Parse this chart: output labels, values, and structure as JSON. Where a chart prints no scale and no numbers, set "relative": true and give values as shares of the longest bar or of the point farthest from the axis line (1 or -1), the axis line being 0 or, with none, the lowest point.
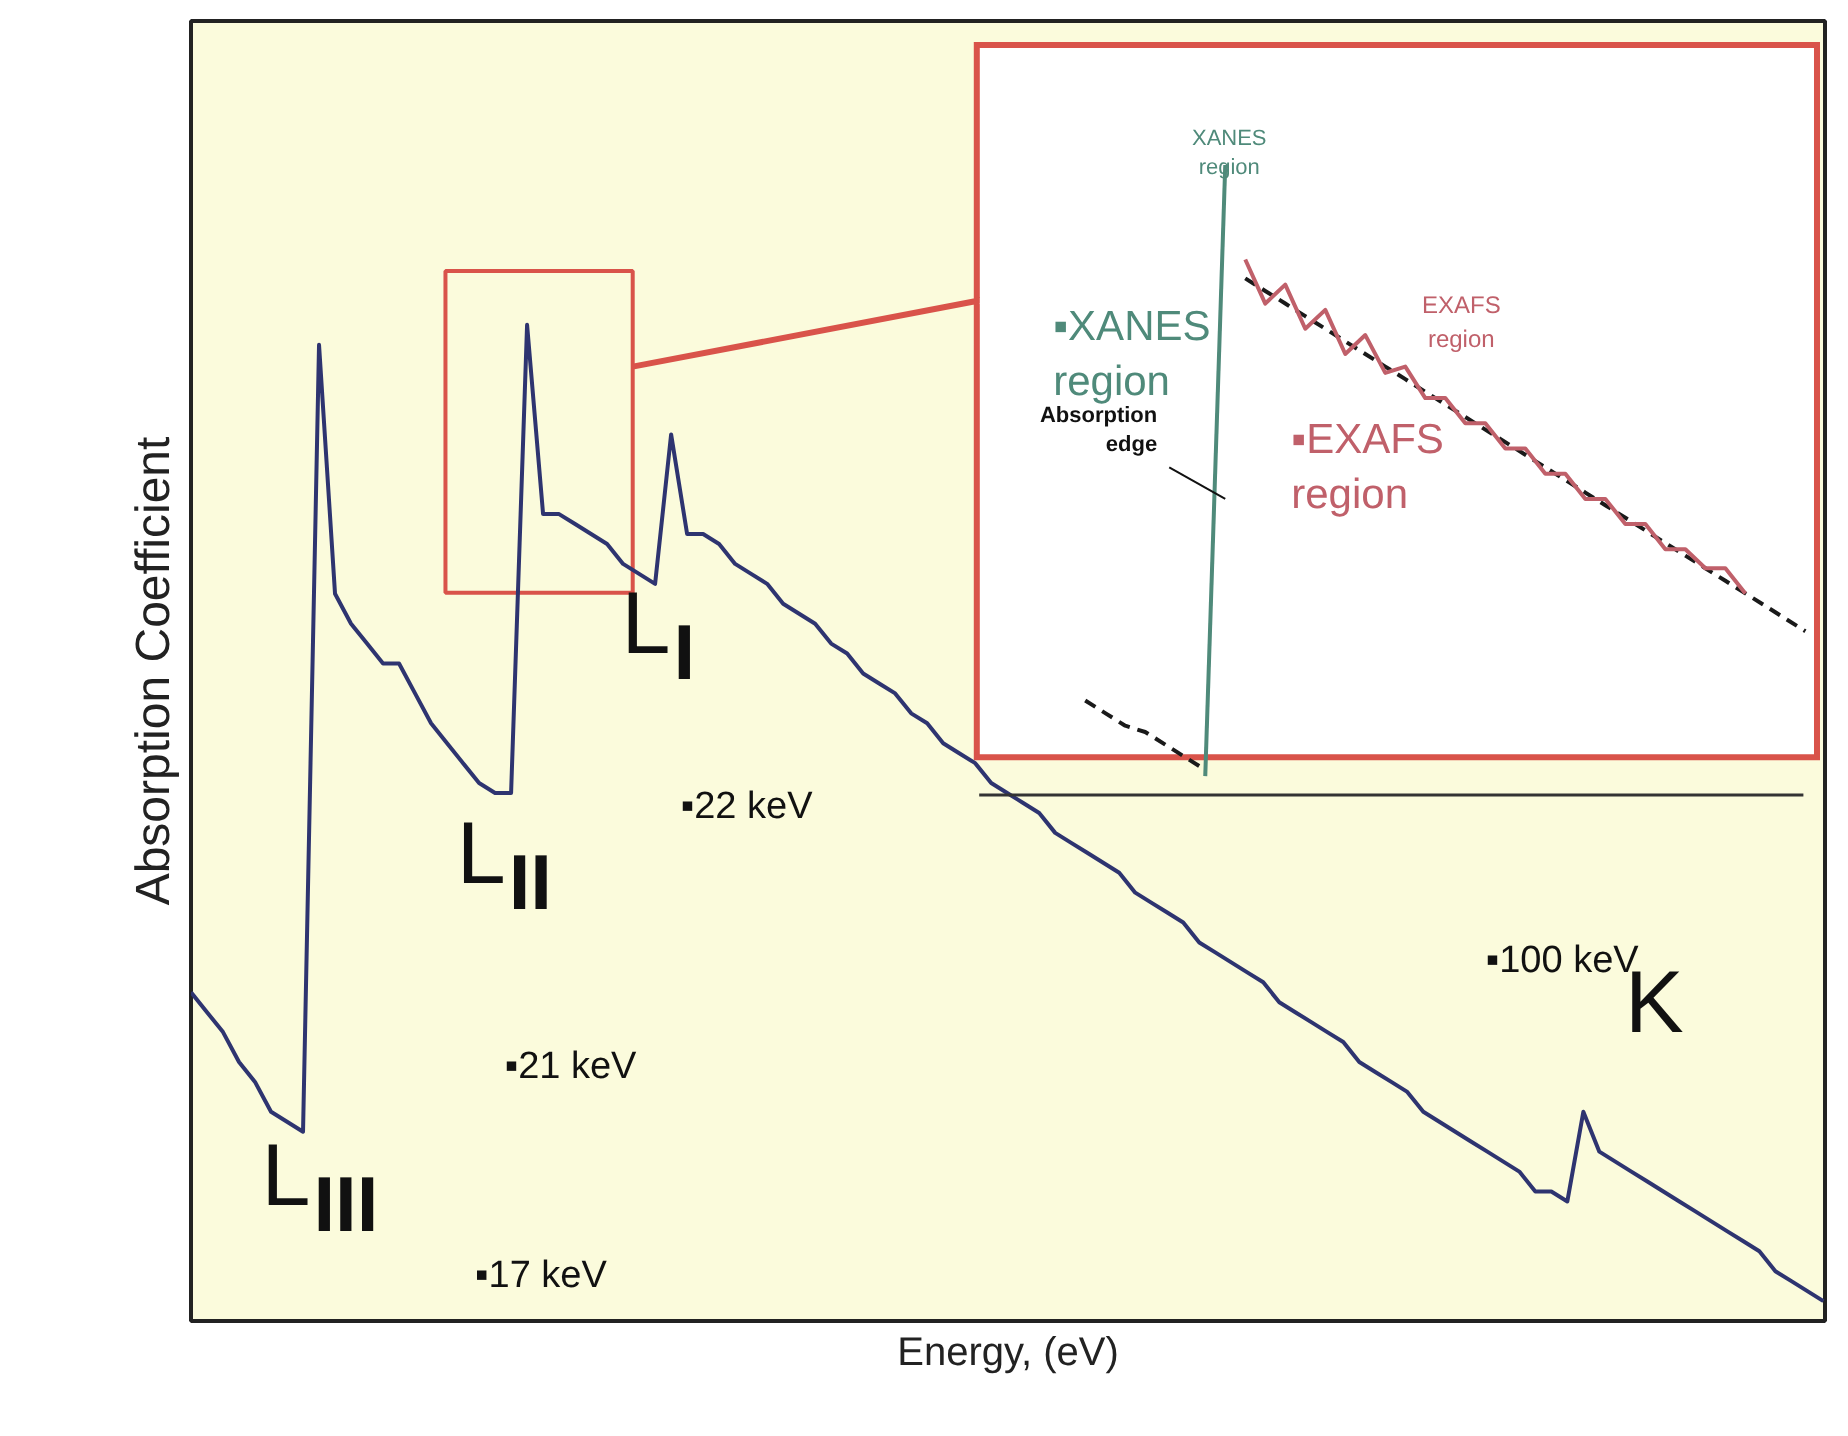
{
  "chart_data": [
    {
      "type": "line",
      "relative": true,
      "xlabel": "Energy, (eV)",
      "ylabel": "Absorption Coefficient",
      "categories": [
        null,
        null,
        null,
        null,
        null,
        null,
        null,
        null,
        null,
        null,
        null,
        null,
        null,
        null,
        null,
        null,
        null,
        null,
        null,
        null,
        null,
        null,
        null,
        null,
        null,
        null,
        null,
        null,
        null,
        null,
        null,
        null,
        null,
        null,
        null,
        null,
        null,
        null,
        null,
        null,
        null,
        null,
        null,
        null,
        null,
        null,
        null,
        null,
        null,
        null,
        null,
        null,
        null,
        null,
        null,
        null,
        null,
        null,
        null,
        null,
        null,
        null,
        null,
        null,
        null,
        null,
        null,
        null,
        null,
        null,
        null,
        null,
        null,
        null,
        null,
        null,
        null,
        null,
        null,
        null,
        null,
        null,
        null,
        null,
        null,
        null,
        null,
        null,
        null,
        null,
        null,
        null,
        null,
        null,
        null,
        null,
        null,
        null,
        null,
        null,
        null,
        null,
        null
      ],
      "series": [
        {
          "color": "#2e3470",
          "values": [
            0.33,
            0.31,
            0.29,
            0.26,
            0.24,
            0.21,
            0.2,
            0.19,
            0.98,
            0.73,
            0.7,
            0.68,
            0.66,
            0.66,
            0.63,
            0.6,
            0.58,
            0.56,
            0.54,
            0.53,
            0.53,
            1.0,
            0.81,
            0.81,
            0.8,
            0.79,
            0.78,
            0.76,
            0.75,
            0.74,
            0.89,
            0.79,
            0.79,
            0.78,
            0.76,
            0.75,
            0.74,
            0.72,
            0.71,
            0.7,
            0.68,
            0.67,
            0.65,
            0.64,
            0.63,
            0.61,
            0.6,
            0.58,
            0.57,
            0.56,
            0.54,
            0.53,
            0.52,
            0.51,
            0.49,
            0.48,
            0.47,
            0.46,
            0.45,
            0.43,
            0.42,
            0.41,
            0.4,
            0.38,
            0.37,
            0.36,
            0.35,
            0.34,
            0.32,
            0.31,
            0.3,
            0.29,
            0.28,
            0.26,
            0.25,
            0.24,
            0.23,
            0.21,
            0.2,
            0.19,
            0.18,
            0.17,
            0.16,
            0.15,
            0.13,
            0.13,
            0.12,
            0.21,
            0.17,
            0.16,
            0.15,
            0.14,
            0.13,
            0.12,
            0.11,
            0.1,
            0.09,
            0.08,
            0.07,
            0.05,
            0.04,
            0.03,
            0.02
          ]
        }
      ],
      "annotations": [
        "L$_{III}$",
        "L$_{II}$",
        "L$_{I}$",
        "K",
        "▪22 keV",
        "▪21 keV",
        "▪17 keV",
        "▪100 keV"
      ]
    },
    {
      "type": "line",
      "relative": true,
      "categories": [
        null,
        null,
        null,
        null,
        null,
        null,
        null,
        null,
        null,
        null,
        null,
        null,
        null,
        null,
        null,
        null,
        null,
        null,
        null,
        null,
        null,
        null,
        null,
        null,
        null,
        null,
        null,
        null,
        null,
        null,
        null,
        null,
        null,
        null,
        null,
        null,
        null,
        null,
        null,
        null,
        null,
        null
      ],
      "series": [
        {
          "color": "#1a1a1a",
          "line_style": "dashed",
          "values": [
            null,
            null,
            null,
            null,
            null,
            0.15,
            0.13,
            0.11,
            0.1,
            0.08,
            0.06,
            0.04,
            null,
            null,
            null,
            null,
            null,
            null,
            null,
            null,
            null,
            null,
            null,
            null,
            null,
            null,
            null,
            null,
            null,
            null,
            null,
            null,
            null,
            null,
            null,
            null,
            null,
            null,
            null,
            null,
            null,
            null
          ]
        },
        {
          "color": "#1a1a1a",
          "line_style": "dashed",
          "values": [
            null,
            null,
            null,
            null,
            null,
            null,
            null,
            null,
            null,
            null,
            null,
            null,
            null,
            0.82,
            0.8,
            0.78,
            0.76,
            0.74,
            0.72,
            0.7,
            0.68,
            0.66,
            0.64,
            0.62,
            0.6,
            0.58,
            0.56,
            0.54,
            0.52,
            0.5,
            0.48,
            0.46,
            0.44,
            0.42,
            0.4,
            0.38,
            0.36,
            0.34,
            0.32,
            0.3,
            0.28,
            0.26
          ]
        },
        {
          "color": "#4f8a7a",
          "values": [
            null,
            null,
            null,
            null,
            null,
            null,
            null,
            null,
            null,
            null,
            null,
            0.03,
            1.0,
            null,
            null,
            null,
            null,
            null,
            null,
            null,
            null,
            null,
            null,
            null,
            null,
            null,
            null,
            null,
            null,
            null,
            null,
            null,
            null,
            null,
            null,
            null,
            null,
            null,
            null,
            null,
            null,
            null
          ]
        },
        {
          "color": "#c0606a",
          "values": [
            null,
            null,
            null,
            null,
            null,
            null,
            null,
            null,
            null,
            null,
            null,
            null,
            null,
            0.85,
            0.78,
            0.81,
            0.74,
            0.77,
            0.7,
            0.73,
            0.67,
            0.68,
            0.63,
            0.63,
            0.59,
            0.59,
            0.55,
            0.55,
            0.51,
            0.51,
            0.47,
            0.47,
            0.43,
            0.43,
            0.39,
            0.39,
            0.36,
            0.36,
            0.32,
            null,
            null,
            null
          ]
        }
      ],
      "annotations": [
        "XANES\nregion",
        "▪XANES\nregion",
        "EXAFS\nregion",
        "▪EXAFS\nregion",
        "Absorption\nedge"
      ]
    }
  ]
}
